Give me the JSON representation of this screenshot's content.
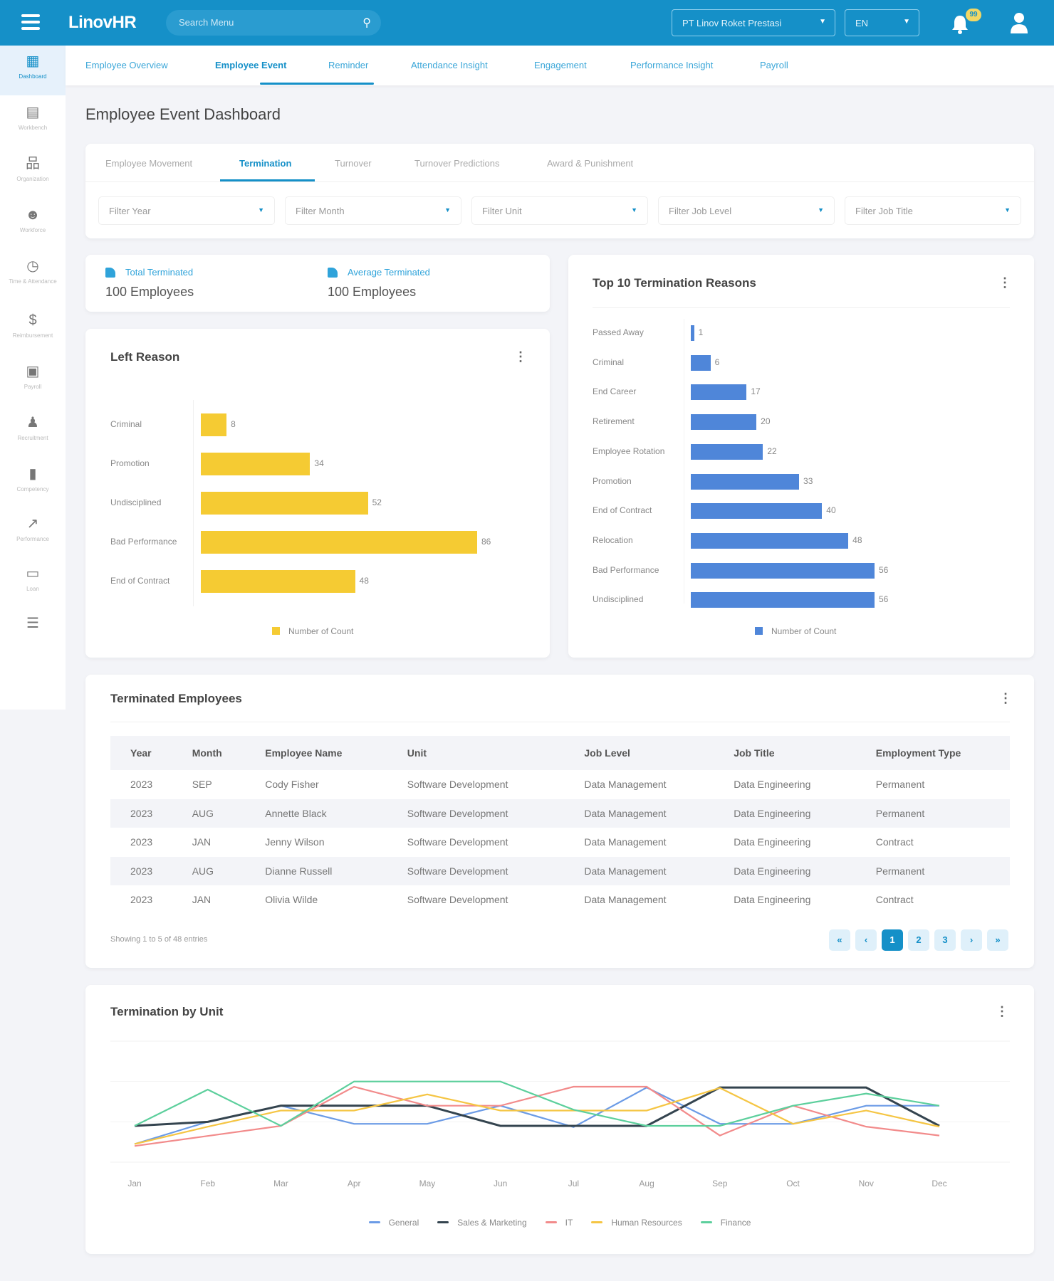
{
  "header": {
    "logo": "LinovHR",
    "search_placeholder": "Search Menu",
    "company": "PT Linov Roket Prestasi",
    "language": "EN",
    "notification_count": "99",
    "brand_color": "#1590c8"
  },
  "sidebar": {
    "items": [
      {
        "label": "Dashboard",
        "icon": "dashboard-icon",
        "active": true
      },
      {
        "label": "Workbench",
        "icon": "briefcase-icon"
      },
      {
        "label": "Organization",
        "icon": "org-chart-icon"
      },
      {
        "label": "Workforce",
        "icon": "people-icon"
      },
      {
        "label": "Time & Attendance",
        "icon": "clock-icon"
      },
      {
        "label": "Reimbursement",
        "icon": "hand-dollar-icon"
      },
      {
        "label": "Payroll",
        "icon": "money-icon"
      },
      {
        "label": "Recruitment",
        "icon": "add-user-icon"
      },
      {
        "label": "Competency",
        "icon": "bar-chart-icon"
      },
      {
        "label": "Performance",
        "icon": "line-chart-icon"
      },
      {
        "label": "Loan",
        "icon": "card-icon"
      },
      {
        "label": "",
        "icon": "signpost-icon"
      }
    ]
  },
  "topnav": {
    "tabs": [
      "Employee Overview",
      "Employee Event",
      "Reminder",
      "Attendance Insight",
      "Engagement",
      "Performance Insight",
      "Payroll"
    ],
    "active": "Employee Event"
  },
  "page_title": "Employee Event Dashboard",
  "subtabs": {
    "tabs": [
      "Employee Movement",
      "Termination",
      "Turnover",
      "Turnover Predictions",
      "Award & Punishment"
    ],
    "active": "Termination"
  },
  "filters": [
    "Filter Year",
    "Filter Month",
    "Filter Unit",
    "Filter Job Level",
    "Filter Job Title"
  ],
  "kpis": [
    {
      "label": "Total Terminated",
      "value": "100 Employees"
    },
    {
      "label": "Average Terminated",
      "value": "100 Employees"
    }
  ],
  "chart_data": [
    {
      "type": "bar",
      "orientation": "horizontal",
      "title": "Left Reason",
      "categories": [
        "Criminal",
        "Promotion",
        "Undisciplined",
        "Bad Performance",
        "End of Contract"
      ],
      "series": [
        {
          "name": "Number of Count",
          "values": [
            8,
            34,
            52,
            86,
            48
          ],
          "color": "#f5cb33"
        }
      ],
      "legend": "bottom"
    },
    {
      "type": "bar",
      "orientation": "horizontal",
      "title": "Top 10 Termination Reasons",
      "categories": [
        "Passed Away",
        "Criminal",
        "End Career",
        "Retirement",
        "Employee Rotation",
        "Promotion",
        "End of Contract",
        "Relocation",
        "Bad Performance",
        "Undisciplined"
      ],
      "series": [
        {
          "name": "Number of Count",
          "values": [
            1,
            6,
            17,
            20,
            22,
            33,
            40,
            48,
            56,
            56
          ],
          "color": "#4f86d9"
        }
      ],
      "legend": "bottom"
    },
    {
      "type": "line",
      "title": "Termination by Unit",
      "categories": [
        "Jan",
        "Feb",
        "Mar",
        "Apr",
        "May",
        "Jun",
        "Jul",
        "Aug",
        "Sep",
        "Oct",
        "Nov",
        "Dec"
      ],
      "grid": true,
      "legend": "bottom",
      "ylim": [
        0,
        3
      ],
      "series": [
        {
          "name": "General",
          "color": "#6b9be6",
          "values": [
            0.45,
            1.0,
            1.4,
            0.95,
            0.95,
            1.4,
            0.87,
            1.85,
            0.95,
            0.95,
            1.4,
            1.4
          ]
        },
        {
          "name": "Sales & Marketing",
          "color": "#34444f",
          "values": [
            0.9,
            1.0,
            1.4,
            1.4,
            1.4,
            0.9,
            0.9,
            0.9,
            1.85,
            1.85,
            1.85,
            0.9
          ]
        },
        {
          "name": "IT",
          "color": "#f28b8b",
          "values": [
            0.4,
            0.65,
            0.9,
            1.87,
            1.4,
            1.4,
            1.87,
            1.87,
            0.66,
            1.4,
            0.88,
            0.66
          ]
        },
        {
          "name": "Human Resources",
          "color": "#f5c543",
          "values": [
            0.45,
            0.88,
            1.28,
            1.28,
            1.68,
            1.28,
            1.28,
            1.28,
            1.84,
            0.95,
            1.28,
            0.88
          ]
        },
        {
          "name": "Finance",
          "color": "#5ccf9c",
          "values": [
            0.9,
            1.8,
            0.9,
            2.0,
            2.0,
            2.0,
            1.3,
            0.9,
            0.9,
            1.4,
            1.7,
            1.4
          ]
        }
      ]
    }
  ],
  "table": {
    "title": "Terminated Employees",
    "columns": [
      "Year",
      "Month",
      "Employee Name",
      "Unit",
      "Job Level",
      "Job Title",
      "Employment Type"
    ],
    "rows": [
      [
        "2023",
        "SEP",
        "Cody Fisher",
        "Software Development",
        "Data Management",
        "Data Engineering",
        "Permanent"
      ],
      [
        "2023",
        "AUG",
        "Annette Black",
        "Software Development",
        "Data Management",
        "Data Engineering",
        "Permanent"
      ],
      [
        "2023",
        "JAN",
        "Jenny Wilson",
        "Software Development",
        "Data Management",
        "Data Engineering",
        "Contract"
      ],
      [
        "2023",
        "AUG",
        "Dianne Russell",
        "Software Development",
        "Data Management",
        "Data Engineering",
        "Permanent"
      ],
      [
        "2023",
        "JAN",
        "Olivia Wilde",
        "Software Development",
        "Data Management",
        "Data Engineering",
        "Contract"
      ]
    ],
    "showing": "Showing 1 to 5 of 48 entries",
    "pagination": [
      "«",
      "‹",
      "1",
      "2",
      "3",
      "›",
      "»"
    ],
    "current_page": "1"
  }
}
